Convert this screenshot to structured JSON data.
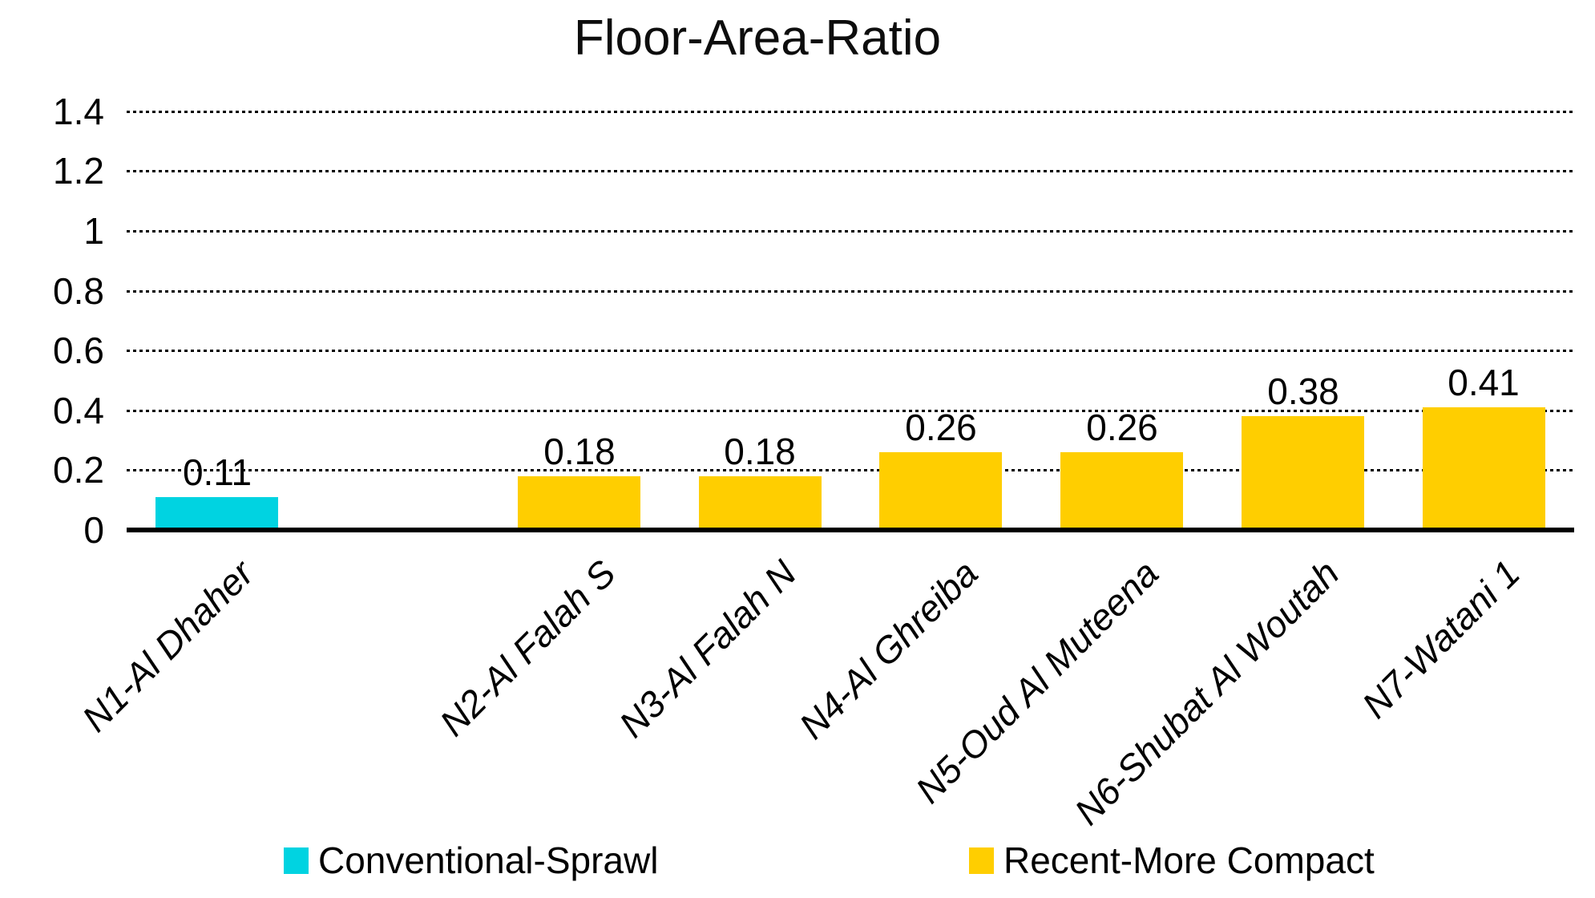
{
  "title": "Floor-Area-Ratio",
  "chart_data": {
    "type": "bar",
    "title": "Floor-Area-Ratio",
    "categories": [
      "N1-Al Dhaher",
      "N2-Al Falah S",
      "N3-Al Falah N",
      "N4-Al Ghreiba",
      "N5-Oud Al Muteena",
      "N6-Shubat Al Woutah",
      "N7-Watani 1"
    ],
    "series": [
      {
        "name": "Conventional-Sprawl",
        "color": "#00D3E1",
        "values": [
          0.11,
          null,
          null,
          null,
          null,
          null,
          null
        ]
      },
      {
        "name": "Recent-More Compact",
        "color": "#FFCE00",
        "values": [
          null,
          0.18,
          0.18,
          0.26,
          0.26,
          0.38,
          0.41
        ]
      }
    ],
    "data_labels": [
      "0.11",
      "0.18",
      "0.18",
      "0.26",
      "0.26",
      "0.38",
      "0.41"
    ],
    "xlabel": "",
    "ylabel": "",
    "y_ticks": [
      0,
      0.2,
      0.4,
      0.6,
      0.8,
      1,
      1.2,
      1.4
    ],
    "ylim": [
      0,
      1.4
    ],
    "grid": "horizontal-dotted-black",
    "legend_position": "bottom",
    "background": "#ffffff",
    "text_color": "#000000"
  }
}
